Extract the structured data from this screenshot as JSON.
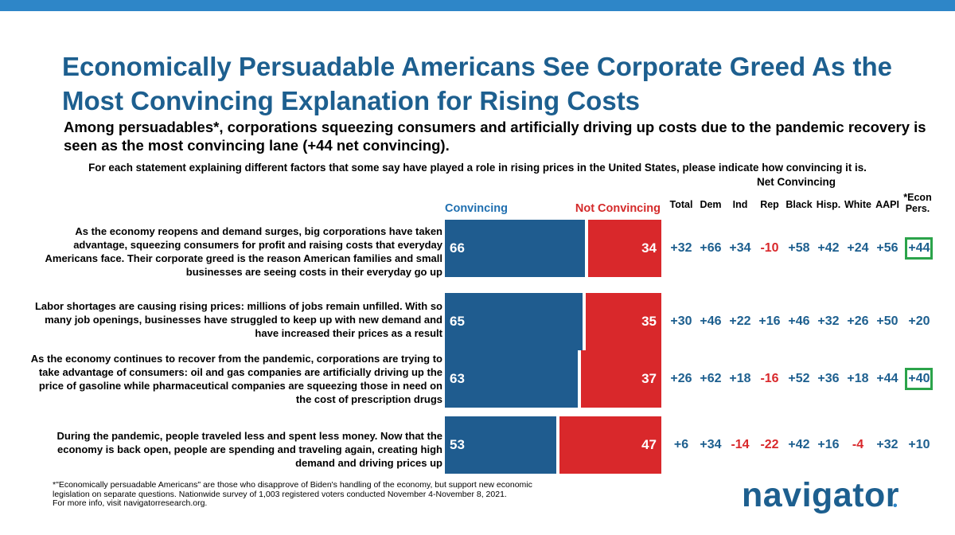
{
  "title": "Economically Persuadable Americans See Corporate Greed As the Most Convincing Explanation for Rising Costs",
  "subtitle": "Among persuadables*, corporations squeezing consumers and artificially driving up costs due to the pandemic recovery is seen as the most convincing lane (+44 net convincing).",
  "question": "For each statement explaining different factors that some say have played a role in rising prices in the United States, please indicate how convincing it is.",
  "net_header": "Net Convincing",
  "columns": [
    "Total",
    "Dem",
    "Ind",
    "Rep",
    "Black",
    "Hisp.",
    "White",
    "AAPI",
    "*Econ Pers."
  ],
  "footnote_line1": "*\"Economically persuadable Americans\" are those who disapprove of Biden's handling of the economy, but support new economic",
  "footnote_line2": "legislation on separate questions. Nationwide survey of 1,003 registered voters conducted November 4-November 8, 2021.",
  "footnote_line3": "For more info, visit navigatorresearch.org.",
  "logo_text": "navigator",
  "logo_dot": "•",
  "colors": {
    "title": "#1d5f8f",
    "convincing": "#1f5c8f",
    "not_convincing": "#d9282b",
    "highlight_box": "#2ba34a",
    "top_band": "#2e86c8"
  },
  "chart_data": {
    "type": "bar",
    "orientation": "horizontal-stacked",
    "legend": [
      "Convincing",
      "Not Convincing"
    ],
    "xlim": [
      0,
      100
    ],
    "categories": [
      "As the economy reopens and demand surges, big corporations have taken advantage, squeezing consumers for profit and raising costs that everyday Americans face. Their corporate greed is the reason American families and small businesses are seeing costs in their everyday go up",
      "Labor shortages are causing rising prices: millions of jobs remain unfilled. With so many job openings, businesses have struggled to keep up with new demand and have increased their prices as a result",
      "As the economy continues to recover from the pandemic, corporations are trying to take advantage of consumers: oil and gas companies are artificially driving up the price of gasoline while pharmaceutical companies are squeezing those in need on the cost of prescription drugs",
      "During the pandemic, people traveled less and spent less money. Now that the economy is back open, people are spending and traveling again, creating high demand and driving prices up"
    ],
    "series": [
      {
        "name": "Convincing",
        "values": [
          66,
          65,
          63,
          53
        ]
      },
      {
        "name": "Not Convincing",
        "values": [
          34,
          35,
          37,
          47
        ]
      }
    ],
    "net_convincing": [
      [
        "+32",
        "+66",
        "+34",
        "-10",
        "+58",
        "+42",
        "+24",
        "+56",
        "+44"
      ],
      [
        "+30",
        "+46",
        "+22",
        "+16",
        "+46",
        "+32",
        "+26",
        "+50",
        "+20"
      ],
      [
        "+26",
        "+62",
        "+18",
        "-16",
        "+52",
        "+36",
        "+18",
        "+44",
        "+40"
      ],
      [
        "+6",
        "+34",
        "-14",
        "-22",
        "+42",
        "+16",
        "-4",
        "+32",
        "+10"
      ]
    ],
    "highlighted_econ": [
      true,
      false,
      true,
      false
    ]
  }
}
